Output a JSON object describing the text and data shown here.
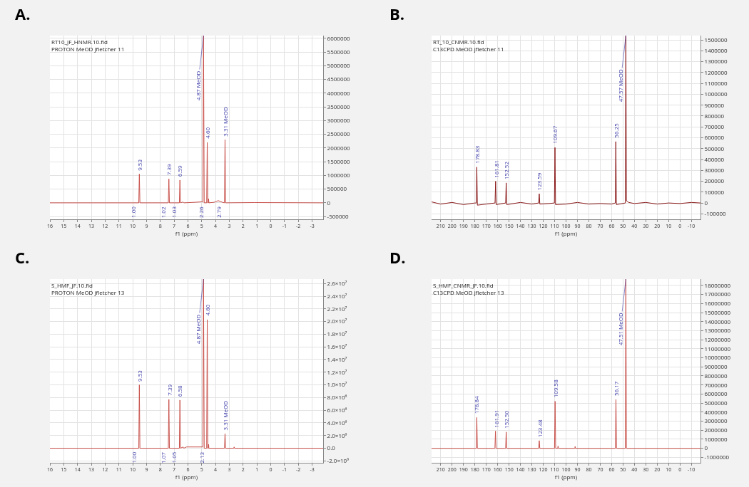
{
  "chart_data": [
    {
      "type": "line",
      "title": "A.",
      "subtitle": "RT10_JF_HNMR.10.fid",
      "xlabel": "f1 (ppm)",
      "color": "#c8504a",
      "grid": true,
      "legend": false,
      "marker": "none",
      "line_style": "solid",
      "xlim": [
        16,
        -3.8
      ],
      "xticks": [
        16,
        15,
        14,
        13,
        12,
        11,
        10,
        9,
        8,
        7,
        6,
        5,
        4,
        3,
        2,
        1,
        0,
        -1,
        -2,
        -3
      ],
      "ylim": [
        -600000,
        6100000
      ],
      "yticks": [
        -500000,
        0,
        500000,
        1000000,
        1500000,
        2000000,
        2500000,
        3000000,
        3500000,
        4000000,
        4500000,
        5000000,
        5500000,
        6000000
      ],
      "x": [
        16,
        9.56,
        9.52,
        9.48,
        8.3,
        7.42,
        7.38,
        7.34,
        6.62,
        6.58,
        6.54,
        6.35,
        6.3,
        5.5,
        4.92,
        4.87,
        4.82,
        4.64,
        4.6,
        4.56,
        4.52,
        4.5,
        4.48,
        4.1,
        3.8,
        3.5,
        3.35,
        3.31,
        3.27,
        1.2,
        -3.8
      ],
      "values": [
        0,
        0,
        1050000,
        0,
        0,
        0,
        870000,
        0,
        0,
        830000,
        0,
        30000,
        0,
        20000,
        40000,
        6100000,
        0,
        0,
        2200000,
        0,
        0,
        150000,
        0,
        20000,
        80000,
        20000,
        0,
        2300000,
        0,
        10000,
        0
      ],
      "annotations": [
        "PROTON MeOD jfletcher 11",
        {
          "text": "9.53",
          "x": 9.52,
          "y": 1050000
        },
        {
          "text": "7.39",
          "x": 7.38,
          "y": 870000
        },
        {
          "text": "6.59",
          "x": 6.58,
          "y": 830000
        },
        {
          "text": "4.87 MeOD",
          "x": 4.87,
          "y": 6100000
        },
        {
          "text": "4.60",
          "x": 4.6,
          "y": 2200000
        },
        {
          "text": "3.31 MeOD",
          "x": 3.31,
          "y": 2300000
        },
        {
          "text": "1.00",
          "x": 9.56,
          "y": 0
        },
        {
          "text": "1.02",
          "x": 7.42,
          "y": 0
        },
        {
          "text": "1.03",
          "x": 6.62,
          "y": 0
        },
        {
          "text": "2.26",
          "x": 4.64,
          "y": 0
        },
        {
          "text": "2.79",
          "x": 3.35,
          "y": 0
        }
      ]
    },
    {
      "type": "line",
      "title": "B.",
      "subtitle": "RT_10_CNMR.10.fid",
      "xlabel": "f1 (ppm)",
      "color": "#8b1a1a",
      "grid": true,
      "legend": false,
      "marker": "none",
      "line_style": "solid",
      "xlim": [
        218,
        -18
      ],
      "xticks": [
        210,
        200,
        190,
        180,
        170,
        160,
        150,
        140,
        130,
        120,
        110,
        100,
        90,
        80,
        70,
        60,
        50,
        40,
        30,
        20,
        10,
        0,
        -10
      ],
      "ylim": [
        -150000,
        1540000
      ],
      "yticks": [
        -100000,
        0,
        100000,
        200000,
        300000,
        400000,
        500000,
        600000,
        700000,
        800000,
        900000,
        1000000,
        1100000,
        1200000,
        1300000,
        1400000,
        1500000
      ],
      "x": [
        218,
        210,
        200,
        190,
        180,
        178.8,
        178.3,
        177.8,
        170,
        162.3,
        161.8,
        161.3,
        153,
        152.5,
        152,
        140,
        130,
        124,
        123.5,
        123,
        115,
        110.2,
        109.7,
        109.2,
        100,
        90,
        80,
        70,
        60,
        56.8,
        56.3,
        55.8,
        48,
        47.5,
        47,
        45,
        40,
        30,
        20,
        10,
        0,
        -10,
        -18
      ],
      "values": [
        10000,
        -10000,
        5000,
        -15000,
        0,
        0,
        330000,
        -20000,
        -10000,
        0,
        200000,
        -15000,
        0,
        185000,
        -15000,
        5000,
        -10000,
        0,
        85000,
        -10000,
        -5000,
        0,
        510000,
        -15000,
        -10000,
        5000,
        -10000,
        -5000,
        -10000,
        0,
        565000,
        -15000,
        0,
        1540000,
        20000,
        5000,
        -5000,
        5000,
        -10000,
        0,
        -5000,
        5000,
        0
      ],
      "annotations": [
        "C13CPD MeOD jfletcher 11",
        {
          "text": "178.83",
          "x": 178.3,
          "y": 330000
        },
        {
          "text": "161.81",
          "x": 161.8,
          "y": 200000
        },
        {
          "text": "152.52",
          "x": 152.5,
          "y": 185000
        },
        {
          "text": "123.59",
          "x": 123.5,
          "y": 85000
        },
        {
          "text": "109.67",
          "x": 109.7,
          "y": 510000
        },
        {
          "text": "56.25",
          "x": 56.3,
          "y": 565000
        },
        {
          "text": "47.57 MeOD",
          "x": 47.5,
          "y": 1540000
        }
      ]
    },
    {
      "type": "line",
      "title": "C.",
      "subtitle": "S_HMF_JF.10.fid",
      "xlabel": "f1 (ppm)",
      "color": "#c8504a",
      "grid": true,
      "legend": false,
      "marker": "none",
      "line_style": "solid",
      "xlim": [
        16,
        -3.8
      ],
      "xticks": [
        16,
        15,
        14,
        13,
        12,
        11,
        10,
        9,
        8,
        7,
        6,
        5,
        4,
        3,
        2,
        1,
        0,
        -1,
        -2,
        -3
      ],
      "ylim": [
        -2300000,
        26700000
      ],
      "yticks": [
        {
          "value": -2000000,
          "label": "-2.0×10⁶"
        },
        {
          "value": 0,
          "label": "0.0"
        },
        {
          "value": 2000000,
          "label": "2.0×10⁶"
        },
        {
          "value": 4000000,
          "label": "4.0×10⁶"
        },
        {
          "value": 6000000,
          "label": "6.0×10⁶"
        },
        {
          "value": 8000000,
          "label": "8.0×10⁶"
        },
        {
          "value": 10000000,
          "label": "1.0×10⁷"
        },
        {
          "value": 12000000,
          "label": "1.2×10⁷"
        },
        {
          "value": 14000000,
          "label": "1.4×10⁷"
        },
        {
          "value": 16000000,
          "label": "1.6×10⁷"
        },
        {
          "value": 18000000,
          "label": "1.8×10⁷"
        },
        {
          "value": 20000000,
          "label": "2.0×10⁷"
        },
        {
          "value": 22000000,
          "label": "2.2×10⁷"
        },
        {
          "value": 24000000,
          "label": "2.4×10⁷"
        },
        {
          "value": 26000000,
          "label": "2.6×10⁷"
        }
      ],
      "x": [
        16,
        9.56,
        9.52,
        9.48,
        7.42,
        7.38,
        7.34,
        6.62,
        6.58,
        6.54,
        6.35,
        6.3,
        6.1,
        5.5,
        4.92,
        4.87,
        4.82,
        4.64,
        4.6,
        4.56,
        4.52,
        4.5,
        4.48,
        3.35,
        3.31,
        3.27,
        2.68,
        2.65,
        2.62,
        -3.8
      ],
      "values": [
        0,
        0,
        10000000,
        0,
        0,
        7700000,
        0,
        0,
        7600000,
        0,
        200000,
        0,
        200000,
        200000,
        200000,
        26700000,
        0,
        0,
        20300000,
        0,
        0,
        600000,
        0,
        0,
        2300000,
        0,
        0,
        200000,
        0,
        0
      ],
      "annotations": [
        "PROTON MeOD jfletcher 13",
        {
          "text": "9.53",
          "x": 9.52,
          "y": 10000000
        },
        {
          "text": "7.39",
          "x": 7.38,
          "y": 7700000
        },
        {
          "text": "6.58",
          "x": 6.58,
          "y": 7600000
        },
        {
          "text": "4.87 MeOD",
          "x": 4.87,
          "y": 26700000
        },
        {
          "text": "4.60",
          "x": 4.6,
          "y": 20300000
        },
        {
          "text": "3.31 MeOD",
          "x": 3.31,
          "y": 2300000
        },
        {
          "text": "1.00",
          "x": 9.56,
          "y": 0
        },
        {
          "text": "1.07",
          "x": 7.42,
          "y": 0
        },
        {
          "text": "1.05",
          "x": 6.62,
          "y": 0
        },
        {
          "text": "2.13",
          "x": 4.64,
          "y": 0
        }
      ]
    },
    {
      "type": "line",
      "title": "D.",
      "subtitle": "S_HMF_CNMR_JF.10.fid",
      "xlabel": "f1 (ppm)",
      "color": "#c8504a",
      "grid": true,
      "legend": false,
      "marker": "none",
      "line_style": "solid",
      "xlim": [
        218,
        -18
      ],
      "xticks": [
        210,
        200,
        190,
        180,
        170,
        160,
        150,
        140,
        130,
        120,
        110,
        100,
        90,
        80,
        70,
        60,
        50,
        40,
        30,
        20,
        10,
        0,
        -10
      ],
      "ylim": [
        -1600000,
        18700000
      ],
      "yticks": [
        -1000000,
        0,
        1000000,
        2000000,
        3000000,
        4000000,
        5000000,
        6000000,
        7000000,
        8000000,
        9000000,
        10000000,
        11000000,
        12000000,
        13000000,
        14000000,
        15000000,
        16000000,
        17000000,
        18000000
      ],
      "x": [
        218,
        180,
        178.8,
        178.3,
        177.8,
        162.4,
        161.9,
        161.4,
        154,
        153,
        152.5,
        152,
        124,
        123.5,
        123,
        110.1,
        109.6,
        109.1,
        107.3,
        107,
        106.7,
        92.3,
        92,
        91.7,
        56.7,
        56.2,
        55.7,
        48,
        47.5,
        47,
        -18
      ],
      "values": [
        0,
        0,
        0,
        3400000,
        0,
        0,
        1900000,
        0,
        0,
        0,
        1800000,
        0,
        0,
        850000,
        0,
        0,
        5200000,
        0,
        0,
        250000,
        0,
        0,
        200000,
        0,
        0,
        5400000,
        0,
        0,
        18700000,
        0,
        0
      ],
      "annotations": [
        "C13CPD MeOD jfletcher 13",
        {
          "text": "178.84",
          "x": 178.3,
          "y": 3400000
        },
        {
          "text": "161.91",
          "x": 161.9,
          "y": 1900000
        },
        {
          "text": "152.50",
          "x": 152.5,
          "y": 1800000
        },
        {
          "text": "123.48",
          "x": 123.5,
          "y": 850000
        },
        {
          "text": "109.58",
          "x": 109.6,
          "y": 5200000
        },
        {
          "text": "56.17",
          "x": 56.2,
          "y": 5400000
        },
        {
          "text": "47.51 MeOD",
          "x": 47.5,
          "y": 18700000
        }
      ]
    }
  ]
}
